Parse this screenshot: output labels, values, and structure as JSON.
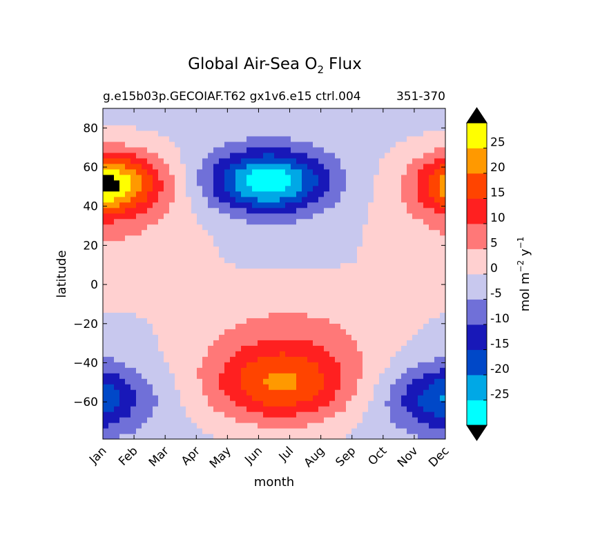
{
  "chart_data": {
    "type": "heatmap",
    "title": "Global Air-Sea O",
    "title_subscript": "2",
    "title_suffix": "Flux",
    "subtitle": "g.e15b03p.GECOIAF.T62 gx1v6.e15 ctrl.004",
    "subtitle_overlap": "351-370",
    "xlabel": "month",
    "ylabel": "latitude",
    "x_ticks": [
      "Jan",
      "Feb",
      "Mar",
      "Apr",
      "May",
      "Jun",
      "Jul",
      "Aug",
      "Sep",
      "Oct",
      "Nov",
      "Dec"
    ],
    "y_ticks": [
      "80",
      "60",
      "40",
      "20",
      "0",
      "−20",
      "−40",
      "−60"
    ],
    "y_tick_values": [
      80,
      60,
      40,
      20,
      0,
      -20,
      -40,
      -60
    ],
    "xlim": [
      0,
      11
    ],
    "ylim": [
      -79,
      90
    ],
    "colorbar": {
      "label_main": "mol m",
      "label_exp1": "−2",
      "label_mid": " y",
      "label_exp2": "−1",
      "tick_labels": [
        "25",
        "20",
        "15",
        "10",
        "5",
        "0",
        "-5",
        "-10",
        "-15",
        "-20",
        "-25"
      ],
      "levels": [
        -30,
        -25,
        -20,
        -15,
        -10,
        -5,
        0,
        5,
        10,
        15,
        20,
        25,
        30
      ],
      "colors": [
        "#00ffff",
        "#00a8e6",
        "#0048c8",
        "#1818b8",
        "#7070d8",
        "#c8c8ee",
        "#ffd0d0",
        "#ff7878",
        "#ff2020",
        "#ff4400",
        "#ff9900",
        "#ffff00"
      ],
      "extend_colors": {
        "min": "#000000",
        "max": "#000000"
      }
    },
    "contour_color": "#555555"
  }
}
